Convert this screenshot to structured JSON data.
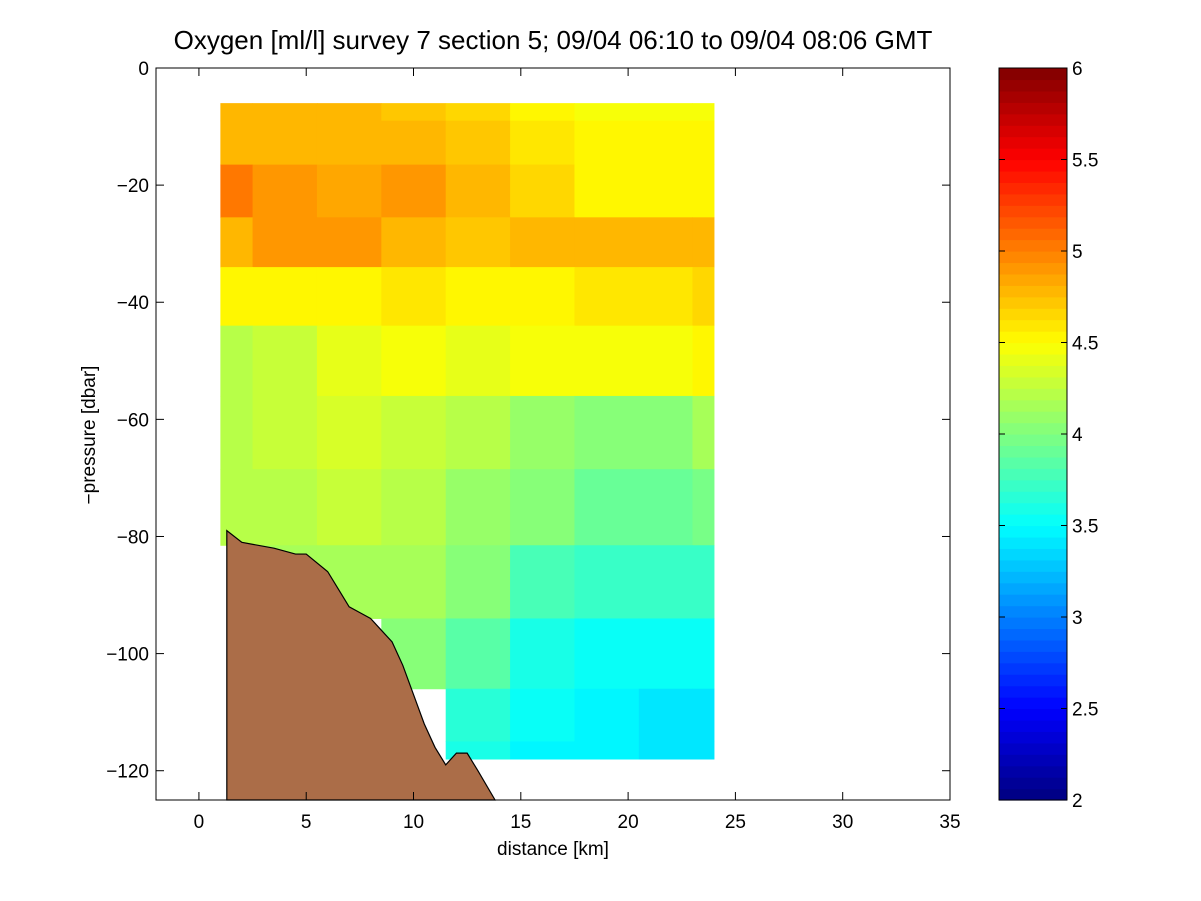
{
  "chart_data": {
    "type": "heatmap",
    "title": "Oxygen [ml/l] survey 7 section 5; 09/04 06:10 to 09/04 08:06 GMT",
    "xlabel": "distance [km]",
    "ylabel": "−pressure [dbar]",
    "xlim": [
      -2,
      35
    ],
    "ylim": [
      -125,
      0
    ],
    "xticks": [
      0,
      5,
      10,
      15,
      20,
      25,
      30,
      35
    ],
    "xtick_labels": [
      "0",
      "5",
      "10",
      "15",
      "20",
      "25",
      "30",
      "35"
    ],
    "yticks": [
      0,
      -20,
      -40,
      -60,
      -80,
      -100,
      -120
    ],
    "ytick_labels": [
      "0",
      "−20",
      "−40",
      "−60",
      "−80",
      "−100",
      "−120"
    ],
    "colorbar": {
      "colormap": "jet",
      "clim": [
        2,
        6
      ],
      "ticks": [
        2,
        2.5,
        3,
        3.5,
        4,
        4.5,
        5,
        5.5,
        6
      ],
      "tick_labels": [
        "2",
        "2.5",
        "3",
        "3.5",
        "4",
        "4.5",
        "5",
        "5.5",
        "6"
      ]
    },
    "grid": false,
    "x": [
      1,
      4,
      7,
      10,
      13,
      16,
      19,
      22,
      24
    ],
    "y": [
      -6,
      -12,
      -21,
      -30,
      -38,
      -50,
      -62,
      -75,
      -88,
      -100,
      -112,
      -118
    ],
    "z": [
      [
        4.8,
        4.75,
        4.75,
        4.7,
        4.65,
        4.55,
        4.45,
        4.45,
        4.45
      ],
      [
        4.8,
        4.8,
        4.75,
        4.75,
        4.7,
        4.6,
        4.5,
        4.5,
        4.5
      ],
      [
        5.0,
        4.9,
        4.85,
        4.9,
        4.8,
        4.65,
        4.55,
        4.5,
        4.5
      ],
      [
        4.75,
        4.9,
        4.9,
        4.75,
        4.7,
        4.8,
        4.75,
        4.8,
        4.8
      ],
      [
        4.5,
        4.55,
        4.55,
        4.6,
        4.5,
        4.55,
        4.6,
        4.6,
        4.65
      ],
      [
        4.2,
        4.3,
        4.4,
        4.45,
        4.4,
        4.45,
        4.45,
        4.45,
        4.5
      ],
      [
        4.2,
        4.25,
        4.35,
        4.25,
        4.2,
        4.1,
        4.0,
        4.05,
        4.15
      ],
      [
        4.2,
        4.2,
        4.3,
        4.2,
        4.1,
        4.0,
        3.9,
        3.9,
        3.95
      ],
      [
        null,
        4.15,
        4.15,
        4.15,
        4.0,
        3.8,
        3.7,
        3.7,
        3.7
      ],
      [
        null,
        null,
        null,
        4.0,
        3.85,
        3.6,
        3.55,
        3.5,
        3.5
      ],
      [
        null,
        null,
        null,
        null,
        3.65,
        3.5,
        3.45,
        3.4,
        3.4
      ],
      [
        null,
        null,
        null,
        null,
        3.6,
        3.45,
        3.45,
        3.4,
        3.4
      ]
    ],
    "bathymetry": {
      "x": [
        1.3,
        2.0,
        3.5,
        4.5,
        5.0,
        6.0,
        6.5,
        7.0,
        7.5,
        8.0,
        8.5,
        9.0,
        9.5,
        10.0,
        10.5,
        11.0,
        11.5,
        12.0,
        12.5,
        13.0,
        13.8
      ],
      "y": [
        -79,
        -81,
        -82,
        -83,
        -83,
        -86,
        -89,
        -92,
        -93,
        -94,
        -96,
        -98,
        -102,
        -107,
        -112,
        -116,
        -119,
        -117,
        -117,
        -120,
        -125
      ],
      "color": "#ab6d48"
    }
  }
}
